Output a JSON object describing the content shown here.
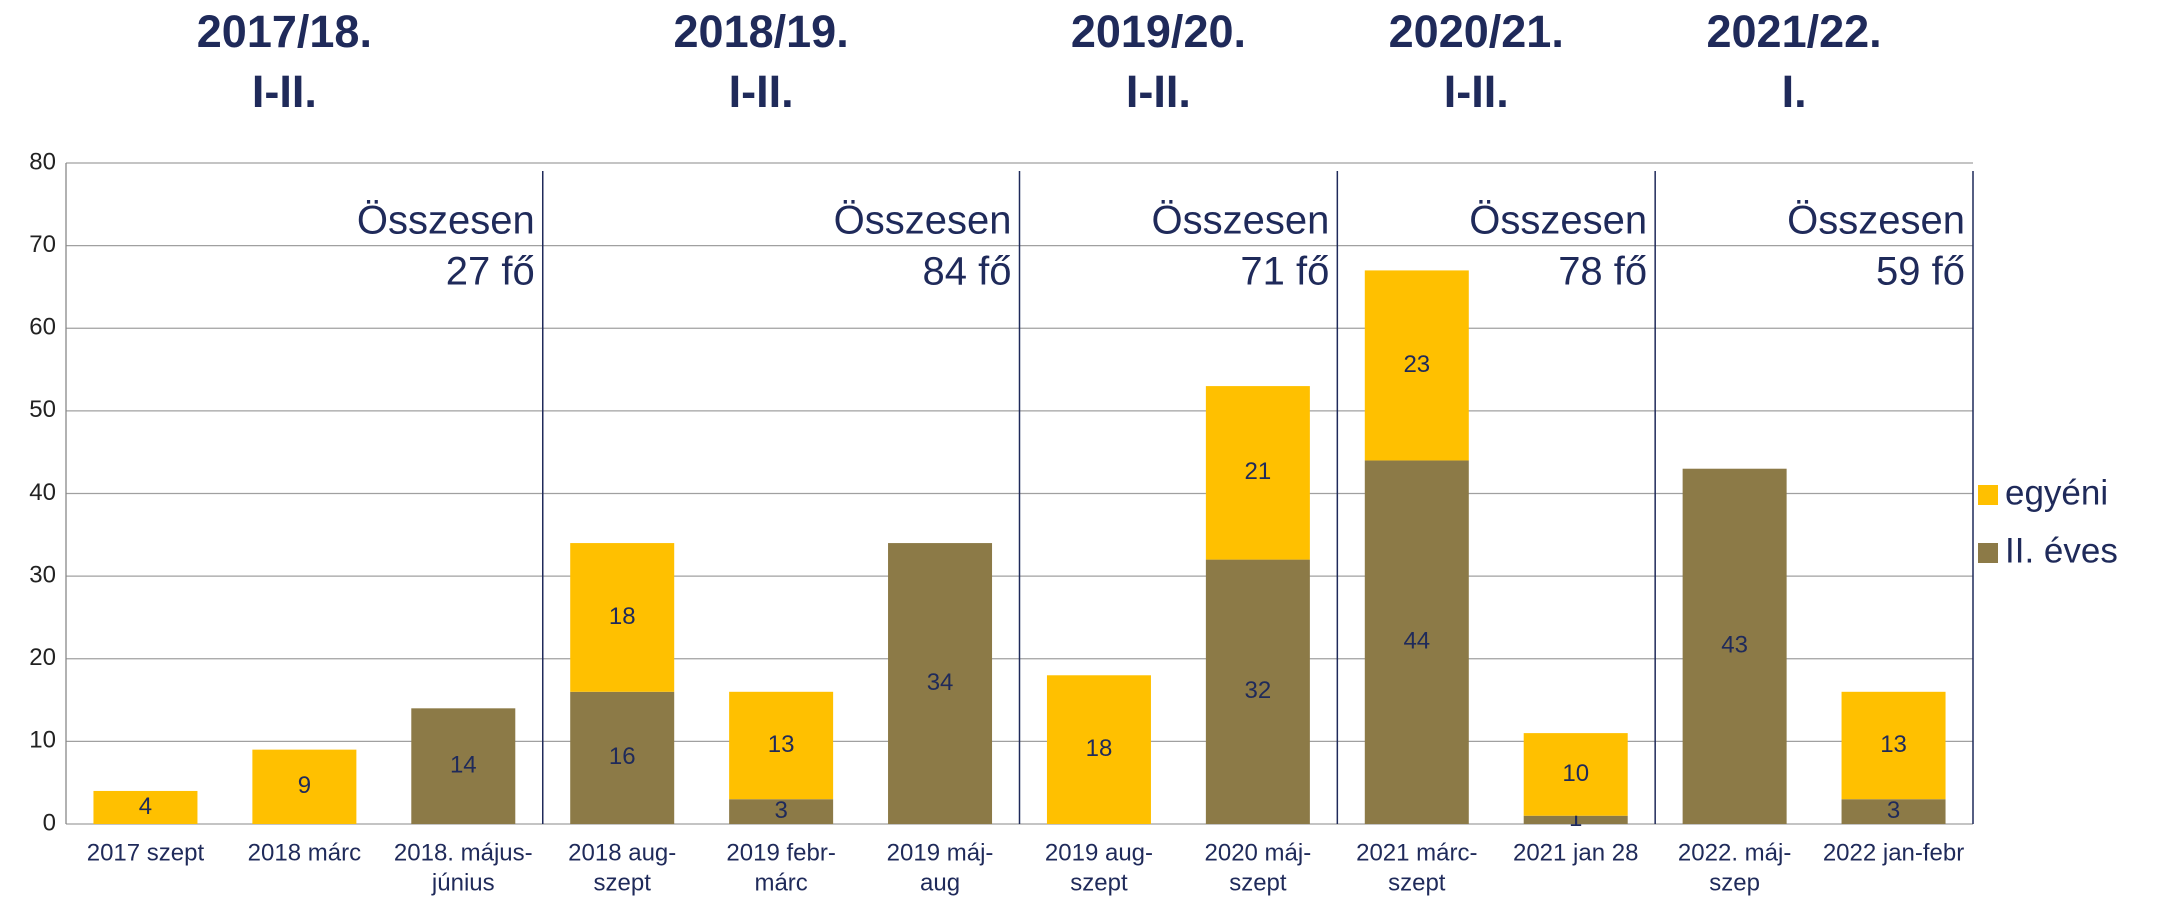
{
  "chart_data": {
    "type": "stacked_bar",
    "categories": [
      [
        "2017 szept"
      ],
      [
        "2018 márc"
      ],
      [
        "2018. május-",
        "június"
      ],
      [
        "2018 aug-",
        "szept"
      ],
      [
        "2019 febr-",
        "márc"
      ],
      [
        "2019 máj-",
        "aug"
      ],
      [
        "2019 aug-",
        "szept"
      ],
      [
        "2020 máj-",
        "szept"
      ],
      [
        "2021 márc-",
        "szept"
      ],
      [
        "2021 jan 28"
      ],
      [
        "2022. máj-",
        "szep"
      ],
      [
        "2022 jan-febr"
      ]
    ],
    "series": [
      {
        "name": "egyéni",
        "color": "#ffc000",
        "values": [
          4,
          9,
          null,
          18,
          13,
          null,
          18,
          21,
          23,
          10,
          null,
          13
        ]
      },
      {
        "name": "II. éves",
        "color": "#8c7a47",
        "values": [
          null,
          null,
          14,
          16,
          3,
          34,
          null,
          32,
          44,
          1,
          43,
          3
        ]
      }
    ],
    "periods": [
      {
        "title": [
          "2017/18.",
          "I-II."
        ],
        "total": [
          "Összesen",
          "27 fő"
        ]
      },
      {
        "title": [
          "2018/19.",
          "I-II."
        ],
        "total": [
          "Összesen",
          "84 fő"
        ]
      },
      {
        "title": [
          "2019/20.",
          "I-II."
        ],
        "total": [
          "Összesen",
          "71 fő"
        ]
      },
      {
        "title": [
          "2020/21.",
          "I-II."
        ],
        "total": [
          "Összesen",
          "78 fő"
        ]
      },
      {
        "title": [
          "2021/22.",
          "I."
        ],
        "total": [
          "Összesen",
          "59 fő"
        ]
      }
    ],
    "ylim": [
      0,
      80
    ],
    "yticks": [
      0,
      10,
      20,
      30,
      40,
      50,
      60,
      70,
      80
    ],
    "grid": true,
    "legend": "right"
  }
}
